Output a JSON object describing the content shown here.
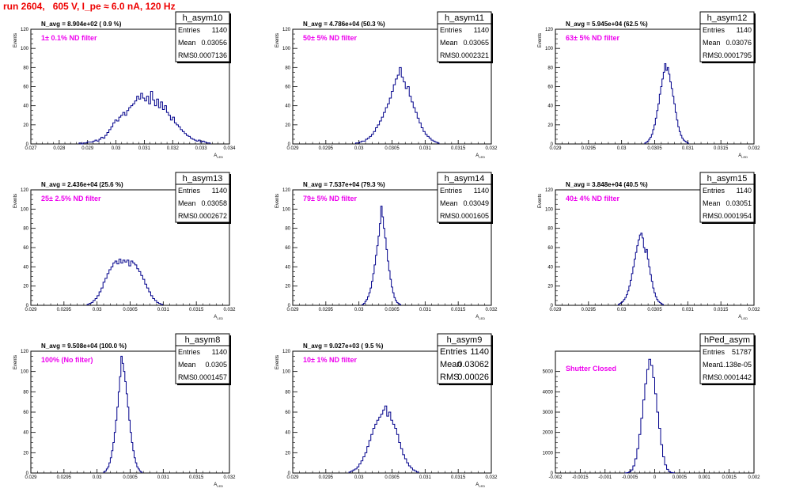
{
  "page_title": "run 2604,   605 V, I_pe ≈ 6.0 nA, 120 Hz",
  "chart_data": [
    {
      "type": "histogram",
      "hist_name": "h_asym10",
      "n_avg": "N_avg = 8.904e+02 ( 0.9 %)",
      "filter": "1± 0.1% ND filter",
      "stats": [
        [
          "Entries",
          "1140"
        ],
        [
          "Mean",
          "0.03056"
        ],
        [
          "RMS",
          "0.0007136"
        ]
      ],
      "ylabel": "Events",
      "xlabel": "A",
      "xlabel_sub": "LED",
      "xlim": [
        0.027,
        0.034
      ],
      "ylim": [
        0,
        120
      ],
      "x_ticks": [
        0.027,
        0.028,
        0.029,
        0.03,
        0.031,
        0.032,
        0.033,
        0.034
      ],
      "x_tick_labels": [
        "0.027",
        "0.028",
        "0.029",
        "0.03",
        "0.031",
        "0.032",
        "0.033",
        "0.034"
      ],
      "y_ticks": [
        0,
        20,
        40,
        60,
        80,
        100,
        120
      ],
      "y_tick_labels": [
        "0",
        "20",
        "40",
        "60",
        "80",
        "100",
        "120"
      ],
      "bin_width": 7e-05,
      "x_start": 0.0287,
      "counts": [
        1,
        0,
        1,
        1,
        2,
        2,
        2,
        3,
        4,
        3,
        5,
        7,
        6,
        9,
        12,
        15,
        18,
        22,
        25,
        24,
        28,
        30,
        33,
        30,
        35,
        38,
        40,
        42,
        45,
        50,
        47,
        53,
        48,
        45,
        50,
        42,
        55,
        46,
        40,
        47,
        38,
        44,
        36,
        40,
        33,
        30,
        25,
        28,
        22,
        20,
        18,
        15,
        13,
        11,
        9,
        8,
        6,
        5,
        4,
        3,
        4,
        2,
        3,
        2,
        1,
        1
      ]
    },
    {
      "type": "histogram",
      "hist_name": "h_asym11",
      "n_avg": "N_avg = 4.786e+04 (50.3 %)",
      "filter": "50± 5% ND filter",
      "stats": [
        [
          "Entries",
          "1140"
        ],
        [
          "Mean",
          "0.03065"
        ],
        [
          "RMS",
          "0.0002321"
        ]
      ],
      "ylabel": "Events",
      "xlabel": "A",
      "xlabel_sub": "LED",
      "xlim": [
        0.029,
        0.032
      ],
      "ylim": [
        0,
        120
      ],
      "x_ticks": [
        0.029,
        0.0295,
        0.03,
        0.0305,
        0.031,
        0.0315,
        0.032
      ],
      "x_tick_labels": [
        "0.029",
        "0.0295",
        "0.03",
        "0.0305",
        "0.031",
        "0.0315",
        "0.032"
      ],
      "y_ticks": [
        0,
        20,
        40,
        60,
        80,
        100,
        120
      ],
      "y_tick_labels": [
        "0",
        "20",
        "40",
        "60",
        "80",
        "100",
        "120"
      ],
      "bin_width": 3e-05,
      "x_start": 0.02995,
      "counts": [
        1,
        1,
        2,
        3,
        3,
        5,
        6,
        8,
        10,
        13,
        17,
        20,
        24,
        28,
        33,
        38,
        42,
        48,
        55,
        62,
        68,
        72,
        80,
        70,
        65,
        58,
        60,
        50,
        44,
        38,
        33,
        27,
        22,
        17,
        13,
        10,
        8,
        6,
        4,
        3,
        2,
        1
      ]
    },
    {
      "type": "histogram",
      "hist_name": "h_asym12",
      "n_avg": "N_avg = 5.945e+04 (62.5 %)",
      "filter": "63± 5% ND filter",
      "stats": [
        [
          "Entries",
          "1140"
        ],
        [
          "Mean",
          "0.03076"
        ],
        [
          "RMS",
          "0.0001795"
        ]
      ],
      "ylabel": "Events",
      "xlabel": "A",
      "xlabel_sub": "LED",
      "xlim": [
        0.029,
        0.032
      ],
      "ylim": [
        0,
        120
      ],
      "x_ticks": [
        0.029,
        0.0295,
        0.03,
        0.0305,
        0.031,
        0.0315,
        0.032
      ],
      "x_tick_labels": [
        "0.029",
        "0.0295",
        "0.03",
        "0.0305",
        "0.031",
        "0.0315",
        "0.032"
      ],
      "y_ticks": [
        0,
        20,
        40,
        60,
        80,
        100,
        120
      ],
      "y_tick_labels": [
        "0",
        "20",
        "40",
        "60",
        "80",
        "100",
        "120"
      ],
      "bin_width": 2e-05,
      "x_start": 0.03035,
      "counts": [
        1,
        2,
        3,
        5,
        7,
        10,
        15,
        20,
        27,
        35,
        42,
        52,
        60,
        68,
        75,
        84,
        77,
        80,
        73,
        65,
        58,
        50,
        42,
        33,
        25,
        18,
        13,
        9,
        6,
        4,
        3,
        2,
        1
      ]
    },
    {
      "type": "histogram",
      "hist_name": "h_asym13",
      "n_avg": "N_avg = 2.436e+04 (25.6 %)",
      "filter": "25± 2.5% ND filter",
      "stats": [
        [
          "Entries",
          "1140"
        ],
        [
          "Mean",
          "0.03058"
        ],
        [
          "RMS",
          "0.0002672"
        ]
      ],
      "ylabel": "Events",
      "xlabel": "A",
      "xlabel_sub": "LED",
      "xlim": [
        0.029,
        0.032
      ],
      "ylim": [
        0,
        120
      ],
      "x_ticks": [
        0.029,
        0.0295,
        0.03,
        0.0305,
        0.031,
        0.0315,
        0.032
      ],
      "x_tick_labels": [
        "0.029",
        "0.0295",
        "0.03",
        "0.0305",
        "0.031",
        "0.0315",
        "0.032"
      ],
      "y_ticks": [
        0,
        20,
        40,
        60,
        80,
        100,
        120
      ],
      "y_tick_labels": [
        "0",
        "20",
        "40",
        "60",
        "80",
        "100",
        "120"
      ],
      "bin_width": 3e-05,
      "x_start": 0.02985,
      "counts": [
        1,
        2,
        3,
        5,
        7,
        10,
        14,
        18,
        24,
        28,
        33,
        37,
        40,
        44,
        46,
        43,
        48,
        44,
        47,
        45,
        47,
        41,
        46,
        44,
        42,
        38,
        35,
        31,
        27,
        22,
        18,
        14,
        10,
        7,
        5,
        3,
        2,
        1
      ]
    },
    {
      "type": "histogram",
      "hist_name": "h_asym14",
      "n_avg": "N_avg = 7.537e+04 (79.3 %)",
      "filter": "79± 5% ND filter",
      "stats": [
        [
          "Entries",
          "1140"
        ],
        [
          "Mean",
          "0.03049"
        ],
        [
          "RMS",
          "0.0001605"
        ]
      ],
      "ylabel": "Events",
      "xlabel": "A",
      "xlabel_sub": "LED",
      "xlim": [
        0.029,
        0.032
      ],
      "ylim": [
        0,
        120
      ],
      "x_ticks": [
        0.029,
        0.0295,
        0.03,
        0.0305,
        0.031,
        0.0315,
        0.032
      ],
      "x_tick_labels": [
        "0.029",
        "0.0295",
        "0.03",
        "0.0305",
        "0.031",
        "0.0315",
        "0.032"
      ],
      "y_ticks": [
        0,
        20,
        40,
        60,
        80,
        100,
        120
      ],
      "y_tick_labels": [
        "0",
        "20",
        "40",
        "60",
        "80",
        "100",
        "120"
      ],
      "bin_width": 2e-05,
      "x_start": 0.03005,
      "counts": [
        1,
        2,
        4,
        6,
        9,
        13,
        18,
        25,
        33,
        42,
        52,
        62,
        72,
        85,
        103,
        92,
        80,
        70,
        58,
        46,
        36,
        27,
        19,
        13,
        8,
        5,
        3,
        2,
        1
      ]
    },
    {
      "type": "histogram",
      "hist_name": "h_asym15",
      "n_avg": "N_avg = 3.848e+04 (40.5 %)",
      "filter": "40± 4% ND filter",
      "stats": [
        [
          "Entries",
          "1140"
        ],
        [
          "Mean",
          "0.03051"
        ],
        [
          "RMS",
          "0.0001954"
        ]
      ],
      "ylabel": "Events",
      "xlabel": "A",
      "xlabel_sub": "LED",
      "xlim": [
        0.029,
        0.032
      ],
      "ylim": [
        0,
        120
      ],
      "x_ticks": [
        0.029,
        0.0295,
        0.03,
        0.0305,
        0.031,
        0.0315,
        0.032
      ],
      "x_tick_labels": [
        "0.029",
        "0.0295",
        "0.03",
        "0.0305",
        "0.031",
        "0.0315",
        "0.032"
      ],
      "y_ticks": [
        0,
        20,
        40,
        60,
        80,
        100,
        120
      ],
      "y_tick_labels": [
        "0",
        "20",
        "40",
        "60",
        "80",
        "100",
        "120"
      ],
      "bin_width": 2e-05,
      "x_start": 0.02995,
      "counts": [
        1,
        2,
        3,
        4,
        6,
        8,
        11,
        15,
        20,
        26,
        33,
        40,
        48,
        55,
        62,
        68,
        73,
        75,
        70,
        60,
        55,
        58,
        48,
        40,
        32,
        25,
        18,
        13,
        9,
        6,
        4,
        3,
        2,
        1
      ]
    },
    {
      "type": "histogram",
      "hist_name": "h_asym8",
      "n_avg": "N_avg = 9.508e+04 (100.0 %)",
      "filter": "100% (No filter)",
      "stats": [
        [
          "Entries",
          "1140"
        ],
        [
          "Mean",
          "0.0305"
        ],
        [
          "RMS",
          "0.0001457"
        ]
      ],
      "ylabel": "Events",
      "xlabel": "A",
      "xlabel_sub": "LED",
      "xlim": [
        0.029,
        0.032
      ],
      "ylim": [
        0,
        120
      ],
      "x_ticks": [
        0.029,
        0.0295,
        0.03,
        0.0305,
        0.031,
        0.0315,
        0.032
      ],
      "x_tick_labels": [
        "0.029",
        "0.0295",
        "0.03",
        "0.0305",
        "0.031",
        "0.0315",
        "0.032"
      ],
      "y_ticks": [
        0,
        20,
        40,
        60,
        80,
        100,
        120
      ],
      "y_tick_labels": [
        "0",
        "20",
        "40",
        "60",
        "80",
        "100",
        "120"
      ],
      "bin_width": 2e-05,
      "x_start": 0.0301,
      "counts": [
        1,
        2,
        4,
        6,
        10,
        15,
        22,
        30,
        40,
        52,
        65,
        80,
        95,
        115,
        108,
        100,
        90,
        78,
        65,
        52,
        40,
        30,
        22,
        15,
        10,
        6,
        4,
        2,
        1
      ]
    },
    {
      "type": "histogram",
      "hist_name": "h_asym9",
      "n_avg": "N_avg = 9.027e+03 ( 9.5 %)",
      "filter": "10± 1% ND filter",
      "stats": [
        [
          "Entries",
          "1140"
        ],
        [
          "Mean",
          "0.03062"
        ],
        [
          "RMS",
          "0.00026"
        ]
      ],
      "stats_big": true,
      "ylabel": "Events",
      "xlabel": "A",
      "xlabel_sub": "LED",
      "xlim": [
        0.029,
        0.032
      ],
      "ylim": [
        0,
        120
      ],
      "x_ticks": [
        0.029,
        0.0295,
        0.03,
        0.0305,
        0.031,
        0.0315,
        0.032
      ],
      "x_tick_labels": [
        "0.029",
        "0.0295",
        "0.03",
        "0.0305",
        "0.031",
        "0.0315",
        "0.032"
      ],
      "y_ticks": [
        0,
        20,
        40,
        60,
        80,
        100,
        120
      ],
      "y_tick_labels": [
        "0",
        "20",
        "40",
        "60",
        "80",
        "100",
        "120"
      ],
      "bin_width": 3e-05,
      "x_start": 0.02985,
      "counts": [
        1,
        2,
        3,
        4,
        6,
        9,
        12,
        16,
        20,
        26,
        32,
        38,
        44,
        48,
        52,
        55,
        58,
        62,
        66,
        56,
        60,
        52,
        48,
        44,
        38,
        30,
        24,
        18,
        14,
        10,
        7,
        5,
        3,
        2,
        1
      ]
    },
    {
      "type": "histogram",
      "hist_name": "hPed_asym",
      "n_avg": "",
      "filter": "Shutter Closed",
      "stats": [
        [
          "Entries",
          "51787"
        ],
        [
          "Mean",
          "1.138e-05"
        ],
        [
          "RMS",
          "0.0001442"
        ]
      ],
      "ylabel": "",
      "xlabel": "",
      "xlabel_sub": "",
      "xlim": [
        -0.002,
        0.002
      ],
      "ylim": [
        0,
        6000
      ],
      "x_ticks": [
        -0.002,
        -0.0015,
        -0.001,
        -0.0005,
        0,
        0.0005,
        0.001,
        0.0015,
        0.002
      ],
      "x_tick_labels": [
        "-0.002",
        "-0.0015",
        "-0.001",
        "-0.0005",
        "0",
        "0.0005",
        "0.001",
        "0.0015",
        "0.002"
      ],
      "y_ticks": [
        0,
        1000,
        2000,
        3000,
        4000,
        5000
      ],
      "y_tick_labels": [
        "0",
        "1000",
        "2000",
        "3000",
        "4000",
        "5000"
      ],
      "bin_width": 4e-05,
      "x_start": -0.0006,
      "counts": [
        5,
        20,
        60,
        150,
        350,
        700,
        1200,
        1900,
        2700,
        3600,
        4400,
        5100,
        5600,
        5300,
        4700,
        3900,
        3000,
        2200,
        1400,
        800,
        400,
        180,
        70,
        25,
        8
      ]
    }
  ]
}
